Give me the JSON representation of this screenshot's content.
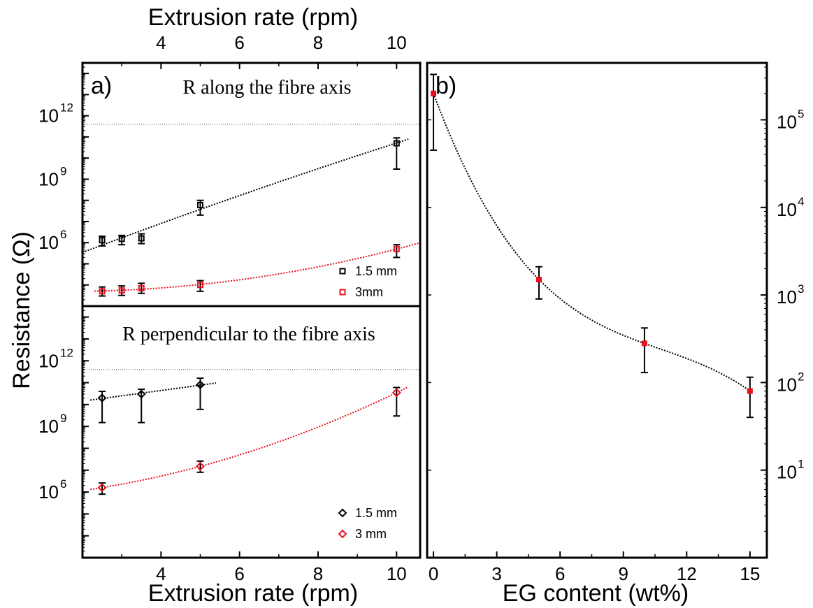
{
  "colors": {
    "black_series": "#000000",
    "red_series": "#e8101c",
    "reference_line": "#888888"
  },
  "chart_data": [
    {
      "panel": "a) top",
      "panel_label": "a)",
      "type": "scatter",
      "annotation": "R along the fibre axis",
      "top_xlabel": "Extrusion rate (rpm)",
      "top_xticks": [
        "4",
        "6",
        "8",
        "10"
      ],
      "xlim": [
        2,
        10.6
      ],
      "ylog": true,
      "ylim_exp": [
        3,
        14.5
      ],
      "ytick_exps": [
        6,
        9,
        12
      ],
      "reference_line_y": 400000000000.0,
      "marker": "square",
      "legend": {
        "position": "bottom-right"
      },
      "series": [
        {
          "name": "1.5 mm",
          "color": "#000000",
          "x": [
            2.5,
            3,
            3.5,
            5,
            10
          ],
          "y": [
            1300000.0,
            1500000.0,
            1600000.0,
            60000000.0,
            50000000000.0
          ],
          "err_low": [
            700000.0,
            800000.0,
            900000.0,
            20000000.0,
            3000000000.0
          ],
          "err_high": [
            2000000.0,
            2200000.0,
            2600000.0,
            100000000.0,
            90000000000.0
          ]
        },
        {
          "name": "3mm",
          "color": "#e8101c",
          "x": [
            2.5,
            3,
            3.5,
            5,
            10
          ],
          "y": [
            5000.0,
            5500.0,
            7000.0,
            10000.0,
            500000.0
          ],
          "err_low": [
            3000.0,
            3200.0,
            4000.0,
            5000.0,
            200000.0
          ],
          "err_high": [
            8000.0,
            9000.0,
            12000.0,
            16000.0,
            800000.0
          ]
        }
      ]
    },
    {
      "panel": "a) bottom",
      "type": "scatter",
      "annotation": "R perpendicular to the fibre axis",
      "xlabel": "Extrusion rate (rpm)",
      "ylabel": "Resistance (Ω)",
      "xticks": [
        "4",
        "6",
        "8",
        "10"
      ],
      "xlim": [
        2,
        10.6
      ],
      "ylog": true,
      "ylim_exp": [
        3,
        14.5
      ],
      "ytick_exps": [
        6,
        9,
        12
      ],
      "reference_line_y": 400000000000.0,
      "marker": "diamond",
      "legend": {
        "position": "bottom-right"
      },
      "series": [
        {
          "name": "1.5 mm",
          "color": "#000000",
          "x": [
            2.5,
            3.5,
            5
          ],
          "y": [
            20000000000.0,
            30000000000.0,
            80000000000.0
          ],
          "err_low": [
            1500000000.0,
            1500000000.0,
            6000000000.0
          ],
          "err_high": [
            40000000000.0,
            50000000000.0,
            160000000000.0
          ]
        },
        {
          "name": "3 mm",
          "color": "#e8101c",
          "x": [
            2.5,
            5,
            10
          ],
          "y": [
            1600000.0,
            15000000.0,
            35000000000.0
          ],
          "err_low": [
            800000.0,
            8000000.0,
            3000000000.0
          ],
          "err_high": [
            2600000.0,
            26000000.0,
            60000000000.0
          ]
        }
      ]
    },
    {
      "panel": "b)",
      "panel_label": "b)",
      "type": "scatter",
      "xlabel": "EG content (wt%)",
      "xticks": [
        "0",
        "3",
        "6",
        "9",
        "12",
        "15"
      ],
      "xlim": [
        -0.3,
        15.8
      ],
      "ylog": true,
      "ylim_exp": [
        0,
        5.65
      ],
      "ytick_exps": [
        1,
        2,
        3,
        4,
        5
      ],
      "series": [
        {
          "name": "",
          "color": "#e8101c",
          "x": [
            0,
            5,
            10,
            15
          ],
          "y": [
            200000,
            1500,
            280,
            80
          ],
          "err_low": [
            45000,
            900,
            130,
            40
          ],
          "err_high": [
            330000,
            2100,
            420,
            115
          ]
        }
      ]
    }
  ]
}
